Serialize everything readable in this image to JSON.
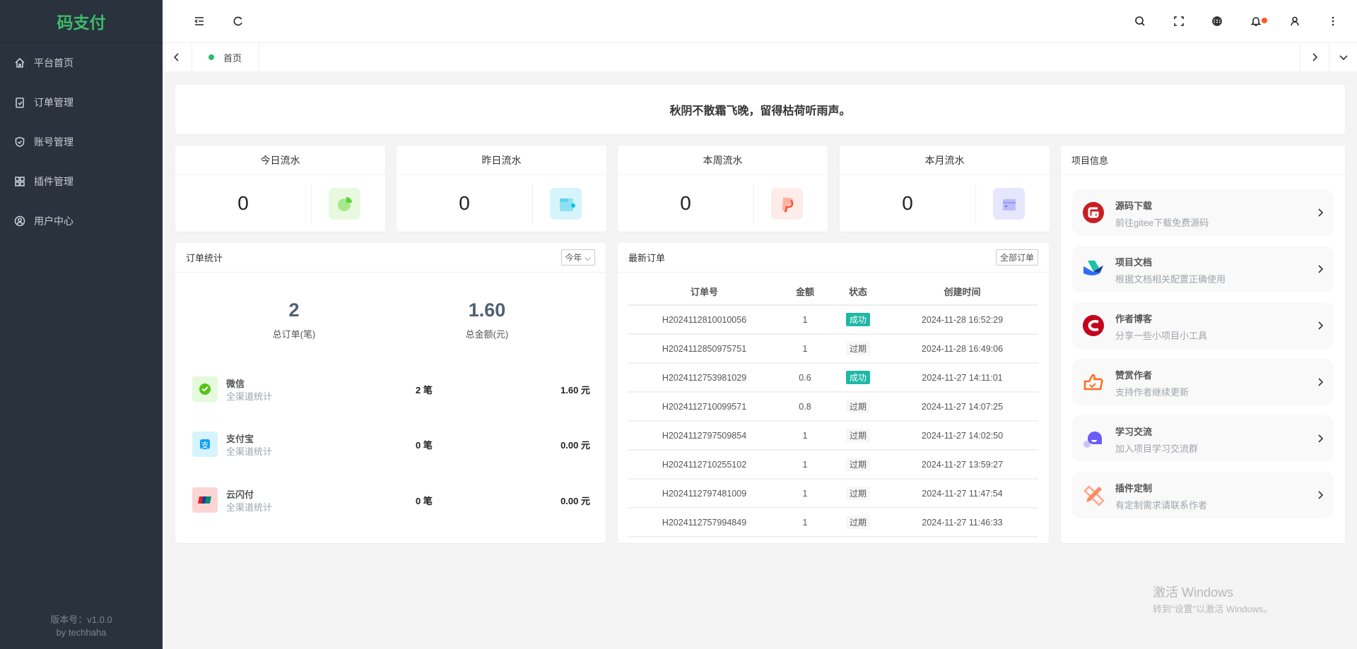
{
  "sidebar": {
    "logo": "码支付",
    "items": [
      {
        "label": "平台首页",
        "icon": "home-icon"
      },
      {
        "label": "订单管理",
        "icon": "clipboard-check-icon"
      },
      {
        "label": "账号管理",
        "icon": "shield-check-icon"
      },
      {
        "label": "插件管理",
        "icon": "grid-icon"
      },
      {
        "label": "用户中心",
        "icon": "user-circle-icon"
      }
    ],
    "version": "版本号：v1.0.0",
    "author": "by techhaha"
  },
  "header": {
    "icons": [
      "menu-fold-icon",
      "refresh-icon",
      "search-icon",
      "fullscreen-icon",
      "globe-icon",
      "bell-icon",
      "user-icon",
      "more-vertical-icon"
    ],
    "notification_dot_color": "#ff5722"
  },
  "tabs": {
    "active": "首页"
  },
  "banner": {
    "text": "秋阴不散霜飞晚，留得枯荷听雨声。"
  },
  "stats": [
    {
      "label": "今日流水",
      "value": "0",
      "color": "#e8f9e0"
    },
    {
      "label": "昨日流水",
      "value": "0",
      "color": "#d6f4fb"
    },
    {
      "label": "本周流水",
      "value": "0",
      "color": "#fdece9"
    },
    {
      "label": "本月流水",
      "value": "0",
      "color": "#e6e6fd"
    }
  ],
  "order_stats": {
    "title": "订单统计",
    "period": "今年",
    "total_orders": "2",
    "total_orders_label": "总订单(笔)",
    "total_amount": "1.60",
    "total_amount_label": "总金额(元)",
    "channels": [
      {
        "name": "微信",
        "sub": "全渠道统计",
        "count": "2 笔",
        "amount": "1.60 元"
      },
      {
        "name": "支付宝",
        "sub": "全渠道统计",
        "count": "0 笔",
        "amount": "0.00 元"
      },
      {
        "name": "云闪付",
        "sub": "全渠道统计",
        "count": "0 笔",
        "amount": "0.00 元"
      }
    ]
  },
  "recent_orders": {
    "title": "最新订单",
    "all_button": "全部订单",
    "columns": [
      "订单号",
      "金额",
      "状态",
      "创建时间"
    ],
    "rows": [
      {
        "id": "H2024112810010056",
        "amount": "1",
        "status": "成功",
        "time": "2024-11-28 16:52:29"
      },
      {
        "id": "H2024112850975751",
        "amount": "1",
        "status": "过期",
        "time": "2024-11-28 16:49:06"
      },
      {
        "id": "H2024112753981029",
        "amount": "0.6",
        "status": "成功",
        "time": "2024-11-27 14:11:01"
      },
      {
        "id": "H2024112710099571",
        "amount": "0.8",
        "status": "过期",
        "time": "2024-11-27 14:07:25"
      },
      {
        "id": "H2024112797509854",
        "amount": "1",
        "status": "过期",
        "time": "2024-11-27 14:02:50"
      },
      {
        "id": "H2024112710255102",
        "amount": "1",
        "status": "过期",
        "time": "2024-11-27 13:59:27"
      },
      {
        "id": "H2024112797481009",
        "amount": "1",
        "status": "过期",
        "time": "2024-11-27 11:47:54"
      },
      {
        "id": "H2024112757994849",
        "amount": "1",
        "status": "过期",
        "time": "2024-11-27 11:46:33"
      }
    ]
  },
  "project_info": {
    "title": "项目信息",
    "items": [
      {
        "title": "源码下载",
        "desc": "前往gitee下载免费源码",
        "icon": "gitee-icon"
      },
      {
        "title": "项目文档",
        "desc": "根据文档相关配置正确使用",
        "icon": "docs-icon"
      },
      {
        "title": "作者博客",
        "desc": "分享一些小项目小工具",
        "icon": "csdn-icon"
      },
      {
        "title": "赞赏作者",
        "desc": "支持作者继续更新",
        "icon": "thumbs-up-icon"
      },
      {
        "title": "学习交流",
        "desc": "加入项目学习交流群",
        "icon": "chat-icon"
      },
      {
        "title": "插件定制",
        "desc": "有定制需求请联系作者",
        "icon": "pencil-ruler-icon"
      }
    ]
  },
  "watermark": {
    "line1": "激活 Windows",
    "line2": "转到\"设置\"以激活 Windows。"
  }
}
